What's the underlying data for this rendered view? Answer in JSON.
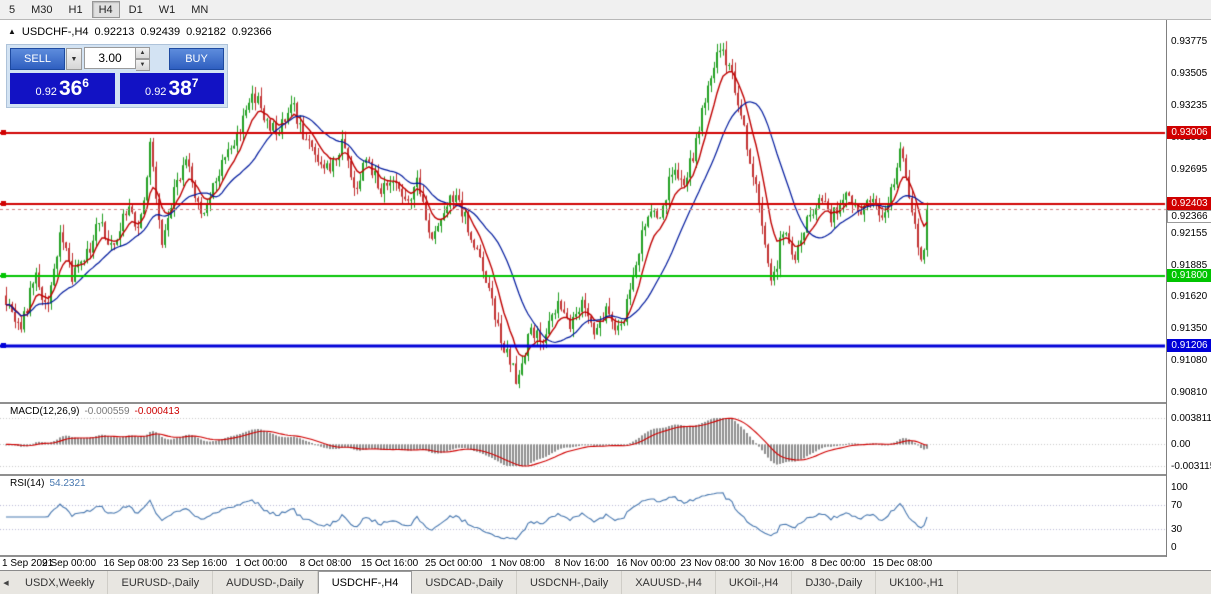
{
  "toolbar": {
    "timeframes": [
      "5",
      "M30",
      "H1",
      "H4",
      "D1",
      "W1",
      "MN"
    ],
    "active": "H4"
  },
  "chart": {
    "symbol_header": {
      "title": "USDCHF-,H4",
      "open": "0.92213",
      "high": "0.92439",
      "low": "0.92182",
      "close": "0.92366"
    },
    "trade_panel": {
      "sell_label": "SELL",
      "buy_label": "BUY",
      "volume": "3.00",
      "sell_price": {
        "prefix": "0.92",
        "big": "36",
        "sup": "6"
      },
      "buy_price": {
        "prefix": "0.92",
        "big": "38",
        "sup": "7"
      }
    },
    "price_axis": {
      "top_price": 0.93775,
      "bottom_price": 0.9081,
      "labels": [
        "0.93775",
        "0.93505",
        "0.93235",
        "0.92965",
        "0.92695",
        "0.92425",
        "0.92155",
        "0.91885",
        "0.91620",
        "0.91350",
        "0.91080",
        "0.90810"
      ]
    },
    "hlines": [
      {
        "price": 0.93006,
        "label": "0.93006",
        "color": "#d00000",
        "width": 2
      },
      {
        "price": 0.92403,
        "label": "0.92403",
        "color": "#d00000",
        "width": 2
      },
      {
        "price": 0.918,
        "label": "0.91800",
        "color": "#00c400",
        "width": 2
      },
      {
        "price": 0.91206,
        "label": "0.91206",
        "color": "#0000d8",
        "width": 3
      }
    ],
    "current_price": {
      "value": 0.92366,
      "label": "0.92366"
    }
  },
  "macd": {
    "name": "MACD(12,26,9)",
    "value_main": "-0.000559",
    "value_signal": "-0.000413",
    "axis_labels": [
      "0.003811",
      "0.00",
      "-0.003115"
    ]
  },
  "rsi": {
    "name": "RSI(14)",
    "value": "54.2321",
    "axis_labels": [
      "100",
      "70",
      "30",
      "0"
    ],
    "levels": [
      70,
      30
    ]
  },
  "date_axis": {
    "labels": [
      "1 Sep 2021",
      "9 Sep 00:00",
      "16 Sep 08:00",
      "23 Sep 16:00",
      "1 Oct 00:00",
      "8 Oct 08:00",
      "15 Oct 16:00",
      "25 Oct 00:00",
      "1 Nov 08:00",
      "8 Nov 16:00",
      "16 Nov 00:00",
      "23 Nov 08:00",
      "30 Nov 16:00",
      "8 Dec 00:00",
      "15 Dec 08:00"
    ]
  },
  "tabs": {
    "items": [
      "USDX,Weekly",
      "EURUSD-,Daily",
      "AUDUSD-,Daily",
      "USDCHF-,H4",
      "USDCAD-,Daily",
      "USDCNH-,Daily",
      "XAUUSD-,H4",
      "UKOil-,H4",
      "DJ30-,Daily",
      "UK100-,H1"
    ],
    "active": "USDCHF-,H4"
  },
  "colors": {
    "bull": "#22a022",
    "bear": "#c23333",
    "ma_fast": "#c00000",
    "ma_slow": "#001a9e",
    "macd_hist": "#8e8e8e",
    "macd_signal": "#d00000",
    "rsi_line": "#4878b0",
    "ask_line": "#d08080"
  },
  "chart_data": {
    "type": "candlestick",
    "symbol": "USDCHF-",
    "timeframe": "H4",
    "ohlc_current": {
      "open": 0.92213,
      "high": 0.92439,
      "low": 0.92182,
      "close": 0.92366
    },
    "price_path": [
      [
        6,
        0.916
      ],
      [
        20,
        0.9132
      ],
      [
        35,
        0.918
      ],
      [
        48,
        0.9152
      ],
      [
        60,
        0.9218
      ],
      [
        72,
        0.918
      ],
      [
        85,
        0.9196
      ],
      [
        100,
        0.9226
      ],
      [
        112,
        0.92
      ],
      [
        125,
        0.9236
      ],
      [
        140,
        0.9222
      ],
      [
        150,
        0.9288
      ],
      [
        162,
        0.921
      ],
      [
        175,
        0.9256
      ],
      [
        188,
        0.9278
      ],
      [
        200,
        0.923
      ],
      [
        212,
        0.9252
      ],
      [
        225,
        0.9282
      ],
      [
        238,
        0.9302
      ],
      [
        252,
        0.9338
      ],
      [
        265,
        0.9312
      ],
      [
        278,
        0.93
      ],
      [
        292,
        0.9326
      ],
      [
        305,
        0.9296
      ],
      [
        318,
        0.928
      ],
      [
        330,
        0.9266
      ],
      [
        342,
        0.929
      ],
      [
        355,
        0.9256
      ],
      [
        368,
        0.928
      ],
      [
        380,
        0.925
      ],
      [
        392,
        0.9268
      ],
      [
        405,
        0.924
      ],
      [
        418,
        0.9258
      ],
      [
        430,
        0.9206
      ],
      [
        442,
        0.9228
      ],
      [
        455,
        0.925
      ],
      [
        468,
        0.9222
      ],
      [
        480,
        0.9196
      ],
      [
        492,
        0.9156
      ],
      [
        505,
        0.9116
      ],
      [
        518,
        0.909
      ],
      [
        530,
        0.9136
      ],
      [
        545,
        0.9128
      ],
      [
        558,
        0.9156
      ],
      [
        570,
        0.914
      ],
      [
        582,
        0.9158
      ],
      [
        595,
        0.913
      ],
      [
        608,
        0.9152
      ],
      [
        620,
        0.9132
      ],
      [
        635,
        0.9186
      ],
      [
        648,
        0.9236
      ],
      [
        660,
        0.9226
      ],
      [
        672,
        0.927
      ],
      [
        685,
        0.9256
      ],
      [
        698,
        0.93
      ],
      [
        710,
        0.9346
      ],
      [
        720,
        0.9372
      ],
      [
        732,
        0.9348
      ],
      [
        745,
        0.93
      ],
      [
        755,
        0.926
      ],
      [
        765,
        0.9206
      ],
      [
        772,
        0.9168
      ],
      [
        782,
        0.9216
      ],
      [
        795,
        0.9196
      ],
      [
        808,
        0.9228
      ],
      [
        820,
        0.9248
      ],
      [
        832,
        0.9228
      ],
      [
        845,
        0.9252
      ],
      [
        858,
        0.923
      ],
      [
        870,
        0.9244
      ],
      [
        882,
        0.9226
      ],
      [
        895,
        0.9262
      ],
      [
        902,
        0.929
      ],
      [
        912,
        0.9236
      ],
      [
        922,
        0.9186
      ],
      [
        928,
        0.9237
      ]
    ],
    "macd_axis_range": [
      0.003811,
      -0.003115
    ],
    "rsi_axis_range": [
      100,
      0
    ]
  }
}
